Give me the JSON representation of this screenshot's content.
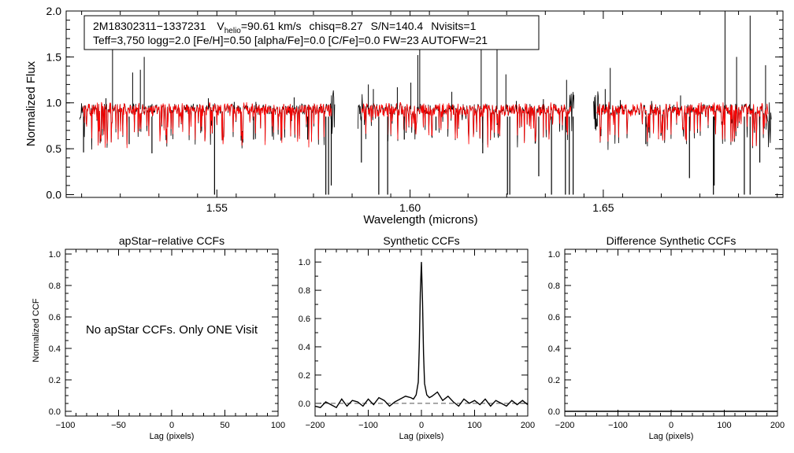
{
  "chart_data": [
    {
      "type": "line",
      "panel": "spectrum",
      "xlabel": "Wavelength (microns)",
      "ylabel": "Normalized Flux",
      "xlim": [
        1.511,
        1.6965
      ],
      "ylim": [
        -0.03,
        2.0
      ],
      "xticks": [
        {
          "value": 1.55,
          "label": "1.55"
        },
        {
          "value": 1.6,
          "label": "1.60"
        },
        {
          "value": 1.65,
          "label": "1.65"
        }
      ],
      "yticks": [
        {
          "value": 0.0,
          "label": "0.0"
        },
        {
          "value": 0.5,
          "label": "0.5"
        },
        {
          "value": 1.0,
          "label": "1.0"
        },
        {
          "value": 1.5,
          "label": "1.5"
        },
        {
          "value": 2.0,
          "label": "2.0"
        }
      ],
      "legend": {
        "line1": {
          "star": "2M18302311−1337231",
          "vhelio_prefix": "V",
          "vhelio_sub": "helio",
          "vhelio_value": "=90.61 km/s",
          "chisq": "chisq=8.27",
          "sn": "S/N=140.4",
          "nvisits": "Nvisits=1"
        },
        "line2": "Teff=3,750 logg=2.0 [Fe/H]=0.50 [alpha/Fe]=0.0 [C/Fe]=0.0 FW=23 AUTOFW=21"
      },
      "series": [
        {
          "name": "observed",
          "color": "#000000"
        },
        {
          "name": "model",
          "color": "#ff0000"
        }
      ],
      "chips": [
        [
          1.5145,
          1.5805
        ],
        [
          1.5865,
          1.6425
        ],
        [
          1.6475,
          1.6935
        ]
      ],
      "continuum": 0.93,
      "emission_spikes": [
        [
          1.523,
          1.61
        ],
        [
          1.5213,
          1.05
        ],
        [
          1.5282,
          1.33
        ],
        [
          1.5302,
          1.36
        ],
        [
          1.5312,
          1.5
        ],
        [
          1.5478,
          1.05
        ],
        [
          1.5545,
          1.01
        ],
        [
          1.5601,
          1.01
        ],
        [
          1.57,
          1.06
        ],
        [
          1.5892,
          1.2
        ],
        [
          1.5905,
          1.15
        ],
        [
          1.5967,
          1.17
        ],
        [
          1.6002,
          1.22
        ],
        [
          1.602,
          1.52
        ],
        [
          1.6025,
          1.84
        ],
        [
          1.6108,
          1.12
        ],
        [
          1.6184,
          1.72
        ],
        [
          1.6225,
          1.63
        ],
        [
          1.6248,
          1.31
        ],
        [
          1.6275,
          1.02
        ],
        [
          1.6345,
          1.04
        ],
        [
          1.6405,
          1.25
        ],
        [
          1.6505,
          1.15
        ],
        [
          1.6518,
          1.38
        ],
        [
          1.6544,
          1.03
        ],
        [
          1.6625,
          1.02
        ],
        [
          1.67,
          1.08
        ],
        [
          1.6815,
          2.0
        ],
        [
          1.6845,
          1.5
        ],
        [
          1.692,
          1.41
        ],
        [
          1.688,
          1.95
        ]
      ],
      "absorption_lines": [
        [
          1.5155,
          0.46
        ],
        [
          1.5273,
          0.55
        ],
        [
          1.5332,
          0.45
        ],
        [
          1.5494,
          0.0
        ],
        [
          1.5595,
          0.6
        ],
        [
          1.5735,
          0.6
        ],
        [
          1.5782,
          0.0
        ],
        [
          1.5789,
          0.0
        ],
        [
          1.5796,
          0.1
        ],
        [
          1.5874,
          0.35
        ],
        [
          1.5919,
          0.0
        ],
        [
          1.5942,
          0.0
        ],
        [
          1.5985,
          0.6
        ],
        [
          1.6067,
          0.7
        ],
        [
          1.6188,
          0.45
        ],
        [
          1.6252,
          0.0
        ],
        [
          1.6258,
          0.0
        ],
        [
          1.6333,
          0.2
        ],
        [
          1.6366,
          0.0
        ],
        [
          1.6402,
          0.0
        ],
        [
          1.6412,
          0.0
        ],
        [
          1.6422,
          0.0
        ],
        [
          1.661,
          0.55
        ],
        [
          1.6723,
          0.18
        ],
        [
          1.6785,
          0.0
        ],
        [
          1.6787,
          0.1
        ],
        [
          1.6865,
          0.0
        ],
        [
          1.688,
          0.0
        ],
        [
          1.6905,
          0.35
        ]
      ]
    },
    {
      "type": "line",
      "panel": "apstar-ccf",
      "title": "apStar−relative CCFs",
      "xlabel": "Lag (pixels)",
      "ylabel": "Normalized CCF",
      "xlim": [
        -100,
        100
      ],
      "ylim": [
        -0.03,
        1.03
      ],
      "xticks": [
        {
          "value": -100,
          "label": "−100"
        },
        {
          "value": -50,
          "label": "−50"
        },
        {
          "value": 0,
          "label": "0"
        },
        {
          "value": 50,
          "label": "50"
        },
        {
          "value": 100,
          "label": "100"
        }
      ],
      "yticks": [
        {
          "value": 0.0,
          "label": "0.0"
        },
        {
          "value": 0.2,
          "label": "0.2"
        },
        {
          "value": 0.4,
          "label": "0.4"
        },
        {
          "value": 0.6,
          "label": "0.6"
        },
        {
          "value": 0.8,
          "label": "0.8"
        },
        {
          "value": 1.0,
          "label": "1.0"
        }
      ],
      "annotation": "No apStar CCFs.  Only ONE Visit"
    },
    {
      "type": "line",
      "panel": "synthetic-ccf",
      "title": "Synthetic CCFs",
      "xlabel": "Lag (pixels)",
      "xlim": [
        -200,
        200
      ],
      "ylim": [
        -0.09,
        1.09
      ],
      "xticks": [
        {
          "value": -200,
          "label": "−200"
        },
        {
          "value": -100,
          "label": "−100"
        },
        {
          "value": 0,
          "label": "0"
        },
        {
          "value": 100,
          "label": "100"
        },
        {
          "value": 200,
          "label": "200"
        }
      ],
      "yticks": [
        {
          "value": 0.0,
          "label": "0.0"
        },
        {
          "value": 0.2,
          "label": "0.2"
        },
        {
          "value": 0.4,
          "label": "0.4"
        },
        {
          "value": 0.6,
          "label": "0.6"
        },
        {
          "value": 0.8,
          "label": "0.8"
        },
        {
          "value": 1.0,
          "label": "1.0"
        }
      ],
      "baseline": 0.0,
      "peak": {
        "lag": 0,
        "value": 1.0
      },
      "x": [
        -200,
        -190,
        -180,
        -170,
        -160,
        -150,
        -140,
        -130,
        -120,
        -110,
        -100,
        -90,
        -80,
        -70,
        -60,
        -50,
        -40,
        -30,
        -20,
        -15,
        -10,
        -6,
        -4,
        -2,
        0,
        2,
        4,
        6,
        10,
        15,
        20,
        30,
        40,
        50,
        60,
        70,
        80,
        90,
        100,
        110,
        120,
        130,
        140,
        150,
        160,
        170,
        180,
        190,
        200
      ],
      "y": [
        -0.02,
        -0.03,
        0.01,
        -0.01,
        -0.03,
        0.03,
        -0.02,
        0.02,
        0.01,
        -0.02,
        0.03,
        -0.01,
        0.04,
        0.02,
        -0.02,
        0.01,
        0.03,
        0.05,
        0.04,
        0.03,
        0.06,
        0.15,
        0.4,
        0.78,
        1.0,
        0.72,
        0.35,
        0.14,
        0.06,
        0.04,
        0.05,
        0.08,
        0.02,
        0.05,
        0.01,
        -0.02,
        0.03,
        0.0,
        0.02,
        -0.01,
        0.03,
        -0.02,
        0.02,
        0.0,
        -0.02,
        0.02,
        -0.01,
        0.02,
        -0.01
      ]
    },
    {
      "type": "line",
      "panel": "difference-ccf",
      "title": "Difference Synthetic CCFs",
      "xlabel": "Lag (pixels)",
      "xlim": [
        -200,
        200
      ],
      "ylim": [
        -0.03,
        1.03
      ],
      "xticks": [
        {
          "value": -200,
          "label": "−200"
        },
        {
          "value": -100,
          "label": "−100"
        },
        {
          "value": 0,
          "label": "0"
        },
        {
          "value": 100,
          "label": "100"
        },
        {
          "value": 200,
          "label": "200"
        }
      ],
      "yticks": [
        {
          "value": 0.0,
          "label": "0.0"
        },
        {
          "value": 0.2,
          "label": "0.2"
        },
        {
          "value": 0.4,
          "label": "0.4"
        },
        {
          "value": 0.6,
          "label": "0.6"
        },
        {
          "value": 0.8,
          "label": "0.8"
        },
        {
          "value": 1.0,
          "label": "1.0"
        }
      ],
      "baseline": 0.0
    }
  ]
}
